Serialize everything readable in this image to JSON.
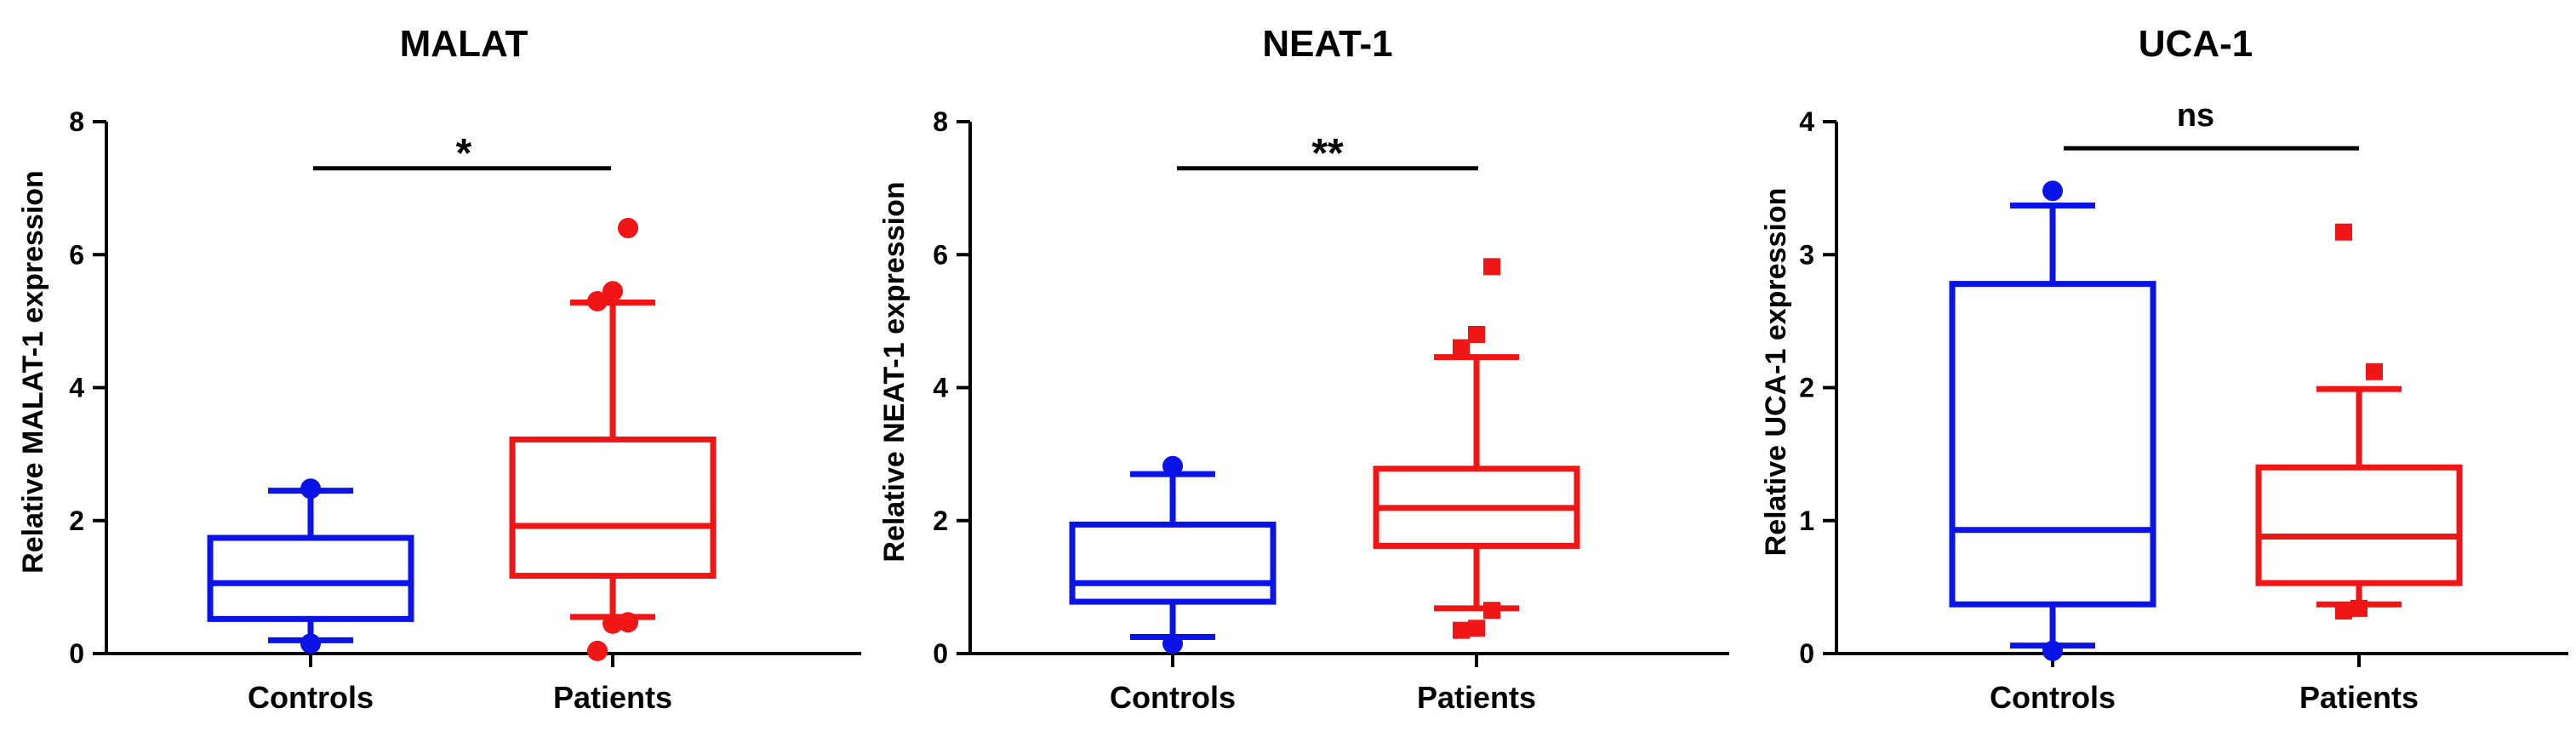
{
  "chart_data": [
    {
      "type": "box",
      "title": "MALAT",
      "ylabel": "Relative MALAT-1 expression",
      "ylim": [
        0,
        8
      ],
      "yticks": [
        0,
        2,
        4,
        6,
        8
      ],
      "categories": [
        "Controls",
        "Patients"
      ],
      "series": [
        {
          "name": "Controls",
          "color": "#0a14e6",
          "marker": "circle",
          "whisker_low": 0.2,
          "q1": 0.52,
          "median": 1.06,
          "q3": 1.74,
          "whisker_high": 2.45,
          "outliers": [
            0.15,
            2.48
          ]
        },
        {
          "name": "Patients",
          "color": "#f01616",
          "marker": "circle",
          "whisker_low": 0.55,
          "q1": 1.17,
          "median": 1.92,
          "q3": 3.22,
          "whisker_high": 5.28,
          "outliers": [
            0.04,
            0.45,
            0.47,
            5.3,
            5.45,
            6.4
          ]
        }
      ],
      "significance": {
        "label": "*",
        "value": 7.3
      }
    },
    {
      "type": "box",
      "title": "NEAT-1",
      "ylabel": "Relative NEAT-1 expression",
      "ylim": [
        0,
        8
      ],
      "yticks": [
        0,
        2,
        4,
        6,
        8
      ],
      "categories": [
        "Controls",
        "Patients"
      ],
      "series": [
        {
          "name": "Controls",
          "color": "#0a14e6",
          "marker": "circle",
          "whisker_low": 0.25,
          "q1": 0.78,
          "median": 1.06,
          "q3": 1.94,
          "whisker_high": 2.7,
          "outliers": [
            0.15,
            2.82
          ]
        },
        {
          "name": "Patients",
          "color": "#f01616",
          "marker": "square",
          "whisker_low": 0.68,
          "q1": 1.62,
          "median": 2.19,
          "q3": 2.78,
          "whisker_high": 4.46,
          "outliers": [
            0.35,
            0.38,
            0.65,
            4.6,
            4.8,
            5.82
          ]
        }
      ],
      "significance": {
        "label": "**",
        "value": 7.3
      }
    },
    {
      "type": "box",
      "title": "UCA-1",
      "ylabel": "Relative UCA-1 expression",
      "ylim": [
        0,
        4
      ],
      "yticks": [
        0,
        1,
        2,
        3,
        4
      ],
      "categories": [
        "Controls",
        "Patients"
      ],
      "series": [
        {
          "name": "Controls",
          "color": "#0a14e6",
          "marker": "circle",
          "whisker_low": 0.06,
          "q1": 0.37,
          "median": 0.93,
          "q3": 2.78,
          "whisker_high": 3.37,
          "outliers": [
            0.02,
            3.48
          ]
        },
        {
          "name": "Patients",
          "color": "#f01616",
          "marker": "square",
          "whisker_low": 0.37,
          "q1": 0.53,
          "median": 0.88,
          "q3": 1.4,
          "whisker_high": 1.99,
          "outliers": [
            0.32,
            0.34,
            2.12,
            3.17
          ]
        }
      ],
      "significance": {
        "label": "ns",
        "value": 3.8
      }
    }
  ]
}
